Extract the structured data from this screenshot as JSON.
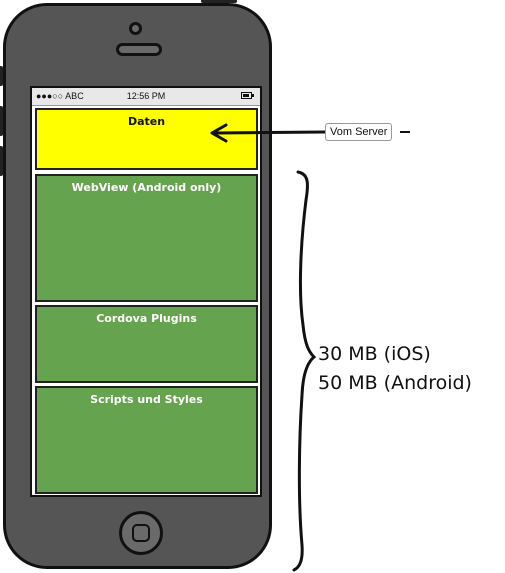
{
  "status_bar": {
    "carrier": "●●●○○ ABC",
    "time": "12:56 PM"
  },
  "blocks": [
    {
      "label": "Daten",
      "color": "#ffff00"
    },
    {
      "label": "WebView (Android only)",
      "color": "#66a34f"
    },
    {
      "label": "Cordova Plugins",
      "color": "#66a34f"
    },
    {
      "label": "Scripts und Styles",
      "color": "#66a34f"
    }
  ],
  "callout": {
    "label": "Vom Server"
  },
  "size_annotation": {
    "ios": "30 MB (iOS)",
    "android": "50 MB (Android)"
  },
  "colors": {
    "phone_body": "#555555",
    "outline": "#111111"
  },
  "icons": [
    "camera-icon",
    "speaker-icon",
    "home-button-icon",
    "battery-icon",
    "arrow-icon",
    "curly-brace-icon"
  ]
}
